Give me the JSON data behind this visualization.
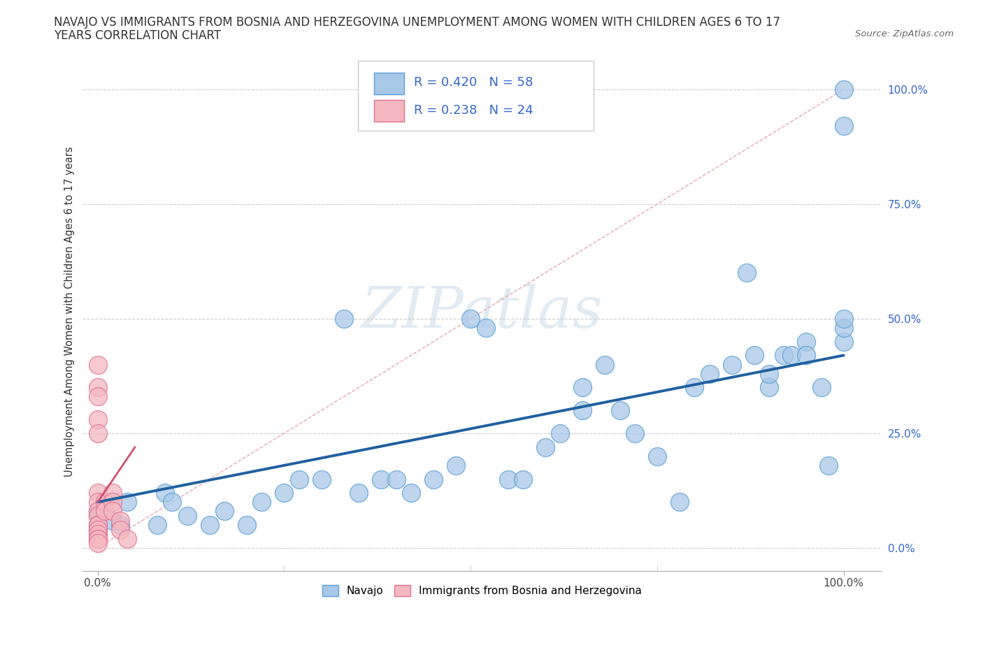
{
  "title_line1": "NAVAJO VS IMMIGRANTS FROM BOSNIA AND HERZEGOVINA UNEMPLOYMENT AMONG WOMEN WITH CHILDREN AGES 6 TO 17",
  "title_line2": "YEARS CORRELATION CHART",
  "source_text": "Source: ZipAtlas.com",
  "ylabel": "Unemployment Among Women with Children Ages 6 to 17 years",
  "xlim": [
    -0.02,
    1.05
  ],
  "ylim": [
    -0.05,
    1.08
  ],
  "xtick_positions": [
    0.0,
    1.0
  ],
  "xtick_labels": [
    "0.0%",
    "100.0%"
  ],
  "ytick_positions": [
    0.0,
    0.25,
    0.5,
    0.75,
    1.0
  ],
  "ytick_labels": [
    "0.0%",
    "25.0%",
    "50.0%",
    "75.0%",
    "100.0%"
  ],
  "navajo_color": "#a8c8e8",
  "navajo_edge": "#5a9fd4",
  "bosnia_color": "#f4b8c0",
  "bosnia_edge": "#e07090",
  "navajo_R": 0.42,
  "navajo_N": 58,
  "bosnia_R": 0.238,
  "bosnia_N": 24,
  "navajo_trend_x": [
    0.0,
    1.0
  ],
  "navajo_trend_y": [
    0.1,
    0.42
  ],
  "navajo_trend_color": "#2060a0",
  "diagonal_color": "#e0a0a8",
  "background_color": "#ffffff",
  "grid_color": "#cccccc",
  "watermark_color": "#dde8f0",
  "title_fontsize": 12,
  "tick_fontsize": 11,
  "legend_fontsize": 13
}
